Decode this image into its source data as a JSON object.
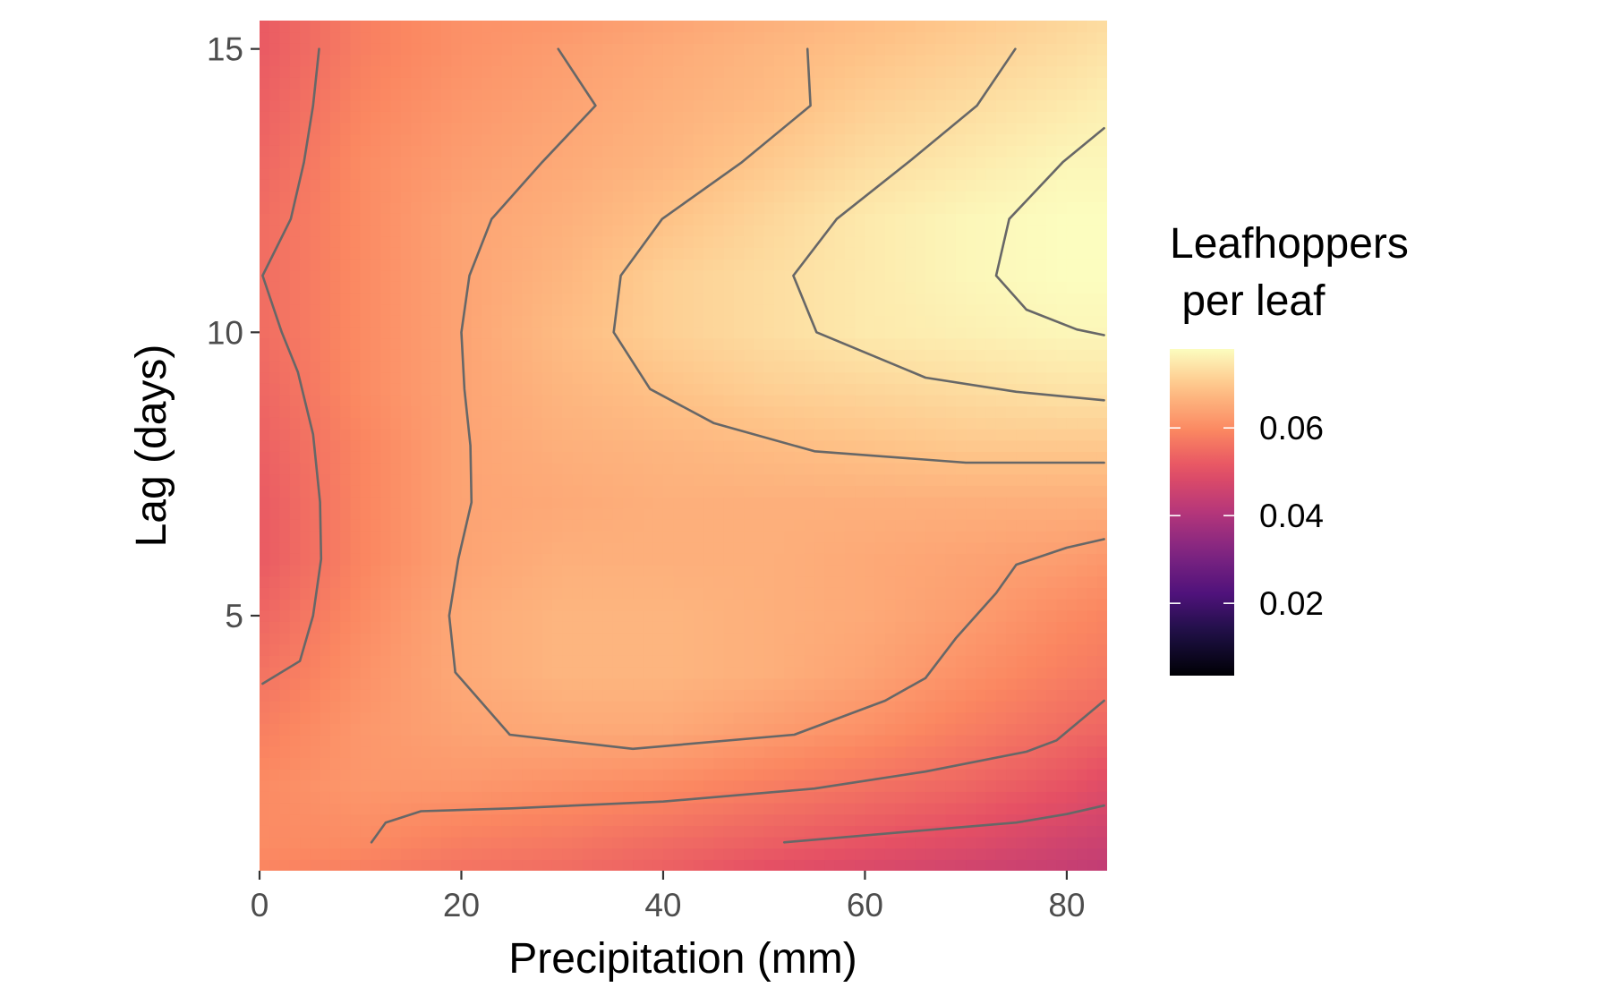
{
  "chart_data": {
    "type": "heatmap",
    "subtype": "filled contour surface with contour lines",
    "title": "",
    "xlabel": "Precipitation (mm)",
    "ylabel": "Lag (days)",
    "xlim": [
      0,
      84
    ],
    "ylim": [
      0.5,
      15.5
    ],
    "x_ticks": [
      0,
      20,
      40,
      60,
      80
    ],
    "x_tick_labels": [
      "0",
      "20",
      "40",
      "60",
      "80"
    ],
    "y_ticks": [
      5,
      10,
      15
    ],
    "y_tick_labels": [
      "5",
      "10",
      "15"
    ],
    "grid": false,
    "colormap": "magma",
    "colorbar": {
      "title": "Leafhoppers\n per leaf",
      "title_lines": [
        "Leafhoppers",
        " per leaf"
      ],
      "range": [
        0.0035,
        0.078
      ],
      "ticks": [
        0.02,
        0.04,
        0.06
      ],
      "tick_labels": [
        "0.02",
        "0.04",
        "0.06"
      ],
      "placement": "right"
    },
    "x_grid": [
      0,
      10,
      20,
      30,
      40,
      50,
      60,
      70,
      80,
      84
    ],
    "y_grid": [
      0.5,
      1,
      2,
      3,
      4,
      5,
      6,
      7,
      8,
      9,
      10,
      11,
      12,
      13,
      14,
      15,
      15.5
    ],
    "z": [
      [
        0.059,
        0.058,
        0.056,
        0.055,
        0.053,
        0.05,
        0.048,
        0.046,
        0.044,
        0.043
      ],
      [
        0.06,
        0.06,
        0.058,
        0.057,
        0.055,
        0.053,
        0.051,
        0.049,
        0.046,
        0.045
      ],
      [
        0.06,
        0.062,
        0.062,
        0.061,
        0.06,
        0.058,
        0.056,
        0.054,
        0.051,
        0.049
      ],
      [
        0.058,
        0.062,
        0.064,
        0.065,
        0.065,
        0.063,
        0.061,
        0.058,
        0.055,
        0.054
      ],
      [
        0.056,
        0.061,
        0.065,
        0.067,
        0.067,
        0.066,
        0.064,
        0.061,
        0.058,
        0.057
      ],
      [
        0.054,
        0.06,
        0.065,
        0.067,
        0.067,
        0.066,
        0.065,
        0.063,
        0.06,
        0.059
      ],
      [
        0.052,
        0.059,
        0.064,
        0.066,
        0.066,
        0.066,
        0.065,
        0.064,
        0.063,
        0.062
      ],
      [
        0.052,
        0.059,
        0.064,
        0.065,
        0.066,
        0.066,
        0.066,
        0.066,
        0.066,
        0.066
      ],
      [
        0.053,
        0.059,
        0.064,
        0.066,
        0.067,
        0.068,
        0.069,
        0.07,
        0.07,
        0.07
      ],
      [
        0.054,
        0.06,
        0.064,
        0.067,
        0.069,
        0.071,
        0.072,
        0.073,
        0.074,
        0.074
      ],
      [
        0.055,
        0.06,
        0.064,
        0.068,
        0.071,
        0.073,
        0.075,
        0.076,
        0.077,
        0.077
      ],
      [
        0.055,
        0.06,
        0.064,
        0.067,
        0.071,
        0.073,
        0.075,
        0.077,
        0.078,
        0.078
      ],
      [
        0.055,
        0.06,
        0.064,
        0.066,
        0.069,
        0.072,
        0.075,
        0.077,
        0.078,
        0.078
      ],
      [
        0.054,
        0.06,
        0.063,
        0.065,
        0.067,
        0.07,
        0.073,
        0.075,
        0.077,
        0.077
      ],
      [
        0.053,
        0.059,
        0.062,
        0.064,
        0.066,
        0.068,
        0.071,
        0.073,
        0.075,
        0.076
      ],
      [
        0.052,
        0.058,
        0.061,
        0.063,
        0.065,
        0.067,
        0.069,
        0.071,
        0.073,
        0.074
      ],
      [
        0.052,
        0.058,
        0.061,
        0.062,
        0.064,
        0.066,
        0.068,
        0.07,
        0.072,
        0.073
      ]
    ],
    "contours": [
      {
        "points": [
          [
            5.9,
            15
          ],
          [
            5.3,
            14
          ],
          [
            4.4,
            13
          ],
          [
            3.1,
            12
          ],
          [
            0.3,
            11
          ],
          [
            2.2,
            10
          ],
          [
            3.8,
            9.3
          ],
          [
            5.3,
            8.2
          ],
          [
            6.0,
            7
          ],
          [
            6.1,
            6
          ],
          [
            5.3,
            5
          ],
          [
            4.0,
            4.2
          ],
          [
            0.3,
            3.8
          ]
        ]
      },
      {
        "points": [
          [
            29.6,
            15
          ],
          [
            33.3,
            14
          ],
          [
            28.0,
            13
          ],
          [
            23.0,
            12
          ],
          [
            20.8,
            11
          ],
          [
            20.0,
            10
          ],
          [
            20.3,
            9
          ],
          [
            20.9,
            8
          ],
          [
            21.0,
            7
          ],
          [
            19.7,
            6
          ],
          [
            18.8,
            5
          ],
          [
            19.4,
            4
          ],
          [
            24.8,
            2.9
          ],
          [
            37.0,
            2.65
          ],
          [
            53.0,
            2.9
          ],
          [
            62.0,
            3.5
          ],
          [
            66.0,
            3.9
          ],
          [
            69.0,
            4.6
          ],
          [
            73.0,
            5.4
          ],
          [
            75.0,
            5.9
          ],
          [
            80.0,
            6.2
          ],
          [
            83.7,
            6.35
          ]
        ]
      },
      {
        "points": [
          [
            54.3,
            15
          ],
          [
            54.6,
            14
          ],
          [
            47.8,
            13
          ],
          [
            39.9,
            12
          ],
          [
            35.8,
            11
          ],
          [
            35.1,
            10
          ],
          [
            38.7,
            9
          ],
          [
            45.0,
            8.4
          ],
          [
            55.0,
            7.9
          ],
          [
            70.0,
            7.7
          ],
          [
            83.7,
            7.7
          ]
        ]
      },
      {
        "points": [
          [
            74.9,
            15
          ],
          [
            71.1,
            14
          ],
          [
            64.3,
            13
          ],
          [
            57.2,
            12
          ],
          [
            52.9,
            11
          ],
          [
            55.2,
            10
          ],
          [
            66.0,
            9.2
          ],
          [
            75.0,
            8.95
          ],
          [
            83.7,
            8.8
          ]
        ]
      },
      {
        "points": [
          [
            83.7,
            13.6
          ],
          [
            79.6,
            13
          ],
          [
            74.3,
            12
          ],
          [
            73.0,
            11
          ],
          [
            76.0,
            10.4
          ],
          [
            81.0,
            10.05
          ],
          [
            83.7,
            9.95
          ]
        ]
      },
      {
        "points": [
          [
            11.1,
            1.0
          ],
          [
            12.5,
            1.35
          ],
          [
            16.0,
            1.55
          ],
          [
            25.0,
            1.6
          ],
          [
            40.0,
            1.72
          ],
          [
            55.0,
            1.95
          ],
          [
            66.0,
            2.25
          ],
          [
            76.0,
            2.6
          ],
          [
            79.0,
            2.8
          ],
          [
            83.7,
            3.5
          ]
        ]
      },
      {
        "points": [
          [
            52.0,
            1.0
          ],
          [
            65.0,
            1.2
          ],
          [
            75.0,
            1.35
          ],
          [
            80.0,
            1.5
          ],
          [
            83.7,
            1.65
          ]
        ]
      }
    ]
  }
}
